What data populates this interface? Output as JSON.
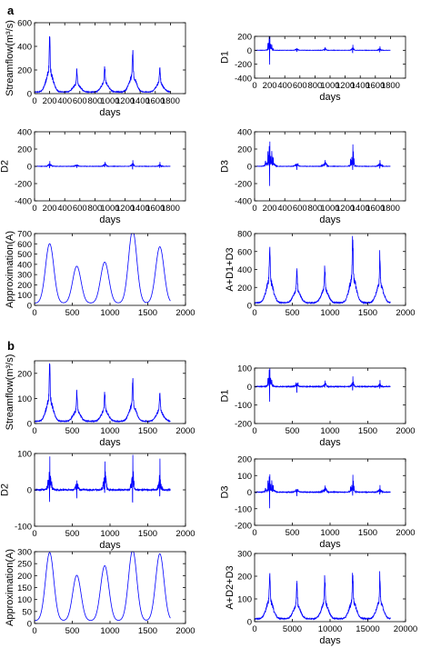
{
  "panel_labels": [
    "a",
    "b"
  ],
  "colors": {
    "series": "#0000ff",
    "axis": "#000000",
    "background": "#ffffff"
  },
  "chart_data": [
    {
      "id": "a-streamflow",
      "type": "line",
      "panel": "a",
      "xlabel": "days",
      "ylabel": "Streamflow(m³/s)",
      "xlim": [
        0,
        2000
      ],
      "ylim": [
        0,
        600
      ],
      "xticks": [
        0,
        200,
        400,
        600,
        800,
        1000,
        1200,
        1400,
        1600,
        1800
      ],
      "yticks": [
        0,
        200,
        400,
        600
      ],
      "kind": "flow",
      "peaks": [
        [
          200,
          480
        ],
        [
          560,
          190
        ],
        [
          930,
          230
        ],
        [
          1300,
          370
        ],
        [
          1660,
          220
        ]
      ]
    },
    {
      "id": "a-d1",
      "type": "line",
      "panel": "a",
      "xlabel": "days",
      "ylabel": "D1",
      "xlim": [
        0,
        2000
      ],
      "ylim": [
        -400,
        200
      ],
      "xticks": [
        0,
        200,
        400,
        600,
        800,
        1000,
        1200,
        1400,
        1600,
        1800
      ],
      "yticks": [
        -400,
        -200,
        0,
        200
      ],
      "kind": "detail",
      "bursts": [
        [
          200,
          110,
          -290,
          40
        ],
        [
          560,
          35,
          -30,
          30
        ],
        [
          930,
          40,
          -35,
          30
        ],
        [
          1300,
          60,
          -50,
          30
        ],
        [
          1660,
          40,
          -35,
          30
        ]
      ]
    },
    {
      "id": "a-d2",
      "type": "line",
      "panel": "a",
      "xlabel": "days",
      "ylabel": "D2",
      "xlim": [
        0,
        2000
      ],
      "ylim": [
        -400,
        400
      ],
      "xticks": [
        0,
        200,
        400,
        600,
        800,
        1000,
        1200,
        1400,
        1600,
        1800
      ],
      "yticks": [
        -400,
        -200,
        0,
        200,
        400
      ],
      "kind": "detail",
      "bursts": [
        [
          200,
          40,
          -45,
          45
        ],
        [
          560,
          25,
          -25,
          35
        ],
        [
          930,
          45,
          -40,
          35
        ],
        [
          1300,
          55,
          -45,
          35
        ],
        [
          1660,
          35,
          -30,
          35
        ]
      ]
    },
    {
      "id": "a-d3",
      "type": "line",
      "panel": "a",
      "xlabel": "days",
      "ylabel": "D3",
      "xlim": [
        0,
        2000
      ],
      "ylim": [
        -400,
        400
      ],
      "xticks": [
        0,
        200,
        400,
        600,
        800,
        1000,
        1200,
        1400,
        1600,
        1800
      ],
      "yticks": [
        -400,
        -200,
        0,
        200,
        400
      ],
      "kind": "detail",
      "bursts": [
        [
          200,
          120,
          -320,
          70
        ],
        [
          560,
          35,
          -50,
          40
        ],
        [
          930,
          70,
          -40,
          45
        ],
        [
          1300,
          250,
          -60,
          45
        ],
        [
          1660,
          50,
          -45,
          45
        ]
      ]
    },
    {
      "id": "a-approximation",
      "type": "line",
      "panel": "a",
      "xlabel": "",
      "ylabel": "Approximation(A)",
      "xlim": [
        0,
        2000
      ],
      "ylim": [
        0,
        700
      ],
      "xticks": [
        0,
        500,
        1000,
        1500,
        2000
      ],
      "yticks": [
        0,
        100,
        200,
        300,
        400,
        500,
        600,
        700
      ],
      "kind": "smooth",
      "peaks": [
        [
          200,
          580
        ],
        [
          560,
          360
        ],
        [
          930,
          400
        ],
        [
          1300,
          710
        ],
        [
          1660,
          550
        ]
      ]
    },
    {
      "id": "a-sum",
      "type": "line",
      "panel": "a",
      "xlabel": "",
      "ylabel": "A+D1+D3",
      "xlim": [
        0,
        2000
      ],
      "ylim": [
        0,
        800
      ],
      "xticks": [
        0,
        500,
        1000,
        1500,
        2000
      ],
      "yticks": [
        0,
        200,
        400,
        600,
        800
      ],
      "kind": "flow",
      "peaks": [
        [
          200,
          700
        ],
        [
          560,
          390
        ],
        [
          930,
          420
        ],
        [
          1300,
          770
        ],
        [
          1660,
          560
        ]
      ]
    },
    {
      "id": "b-streamflow",
      "type": "line",
      "panel": "b",
      "xlabel": "days",
      "ylabel": "Streamflow(m³/s)",
      "xlim": [
        0,
        2000
      ],
      "ylim": [
        0,
        250
      ],
      "xticks": [
        0,
        500,
        1000,
        1500,
        2000
      ],
      "yticks": [
        0,
        100,
        200
      ],
      "kind": "flow",
      "peaks": [
        [
          200,
          235
        ],
        [
          560,
          120
        ],
        [
          930,
          125
        ],
        [
          1300,
          180
        ],
        [
          1660,
          120
        ]
      ]
    },
    {
      "id": "b-d1",
      "type": "line",
      "panel": "b",
      "xlabel": "days",
      "ylabel": "D1",
      "xlim": [
        0,
        2000
      ],
      "ylim": [
        -200,
        100
      ],
      "xticks": [
        0,
        500,
        1000,
        1500,
        2000
      ],
      "yticks": [
        -200,
        -100,
        0,
        100
      ],
      "kind": "detail",
      "bursts": [
        [
          200,
          70,
          -130,
          40
        ],
        [
          560,
          20,
          -40,
          30
        ],
        [
          930,
          30,
          -25,
          30
        ],
        [
          1300,
          45,
          -30,
          30
        ],
        [
          1660,
          25,
          -20,
          30
        ]
      ]
    },
    {
      "id": "b-d2",
      "type": "line",
      "panel": "b",
      "xlabel": "days",
      "ylabel": "D2",
      "xlim": [
        0,
        2000
      ],
      "ylim": [
        -100,
        100
      ],
      "xticks": [
        0,
        500,
        1000,
        1500,
        2000
      ],
      "yticks": [
        -100,
        0,
        100
      ],
      "kind": "detail",
      "bursts": [
        [
          200,
          60,
          -70,
          45
        ],
        [
          560,
          30,
          -30,
          35
        ],
        [
          930,
          70,
          -60,
          35
        ],
        [
          1300,
          80,
          -50,
          35
        ],
        [
          1660,
          60,
          -40,
          35
        ]
      ]
    },
    {
      "id": "b-d3",
      "type": "line",
      "panel": "b",
      "xlabel": "days",
      "ylabel": "D3",
      "xlim": [
        0,
        2000
      ],
      "ylim": [
        -200,
        200
      ],
      "xticks": [
        0,
        500,
        1000,
        1500,
        2000
      ],
      "yticks": [
        -200,
        -100,
        0,
        100,
        200
      ],
      "kind": "detail",
      "bursts": [
        [
          200,
          40,
          -130,
          70
        ],
        [
          560,
          20,
          -30,
          40
        ],
        [
          930,
          40,
          -20,
          45
        ],
        [
          1300,
          100,
          -30,
          45
        ],
        [
          1660,
          30,
          -25,
          45
        ]
      ]
    },
    {
      "id": "b-approximation",
      "type": "line",
      "panel": "b",
      "xlabel": "",
      "ylabel": "Approximation(A)",
      "xlim": [
        0,
        2000
      ],
      "ylim": [
        0,
        300
      ],
      "xticks": [
        0,
        500,
        1000,
        1500,
        2000
      ],
      "yticks": [
        0,
        50,
        100,
        150,
        200,
        250,
        300
      ],
      "kind": "smooth",
      "peaks": [
        [
          200,
          285
        ],
        [
          560,
          190
        ],
        [
          930,
          230
        ],
        [
          1300,
          295
        ],
        [
          1660,
          280
        ]
      ]
    },
    {
      "id": "b-sum",
      "type": "line",
      "panel": "b",
      "xlabel": "days",
      "ylabel": "A+D2+D3",
      "xlim": [
        0,
        20000
      ],
      "ylim": [
        0,
        300
      ],
      "xticks": [
        0,
        5000,
        10000,
        15000,
        20000
      ],
      "yticks": [
        0,
        100,
        200,
        300
      ],
      "display_scale": 10,
      "kind": "flow",
      "peaks": [
        [
          200,
          225
        ],
        [
          560,
          170
        ],
        [
          930,
          195
        ],
        [
          1300,
          210
        ],
        [
          1660,
          200
        ]
      ]
    }
  ]
}
